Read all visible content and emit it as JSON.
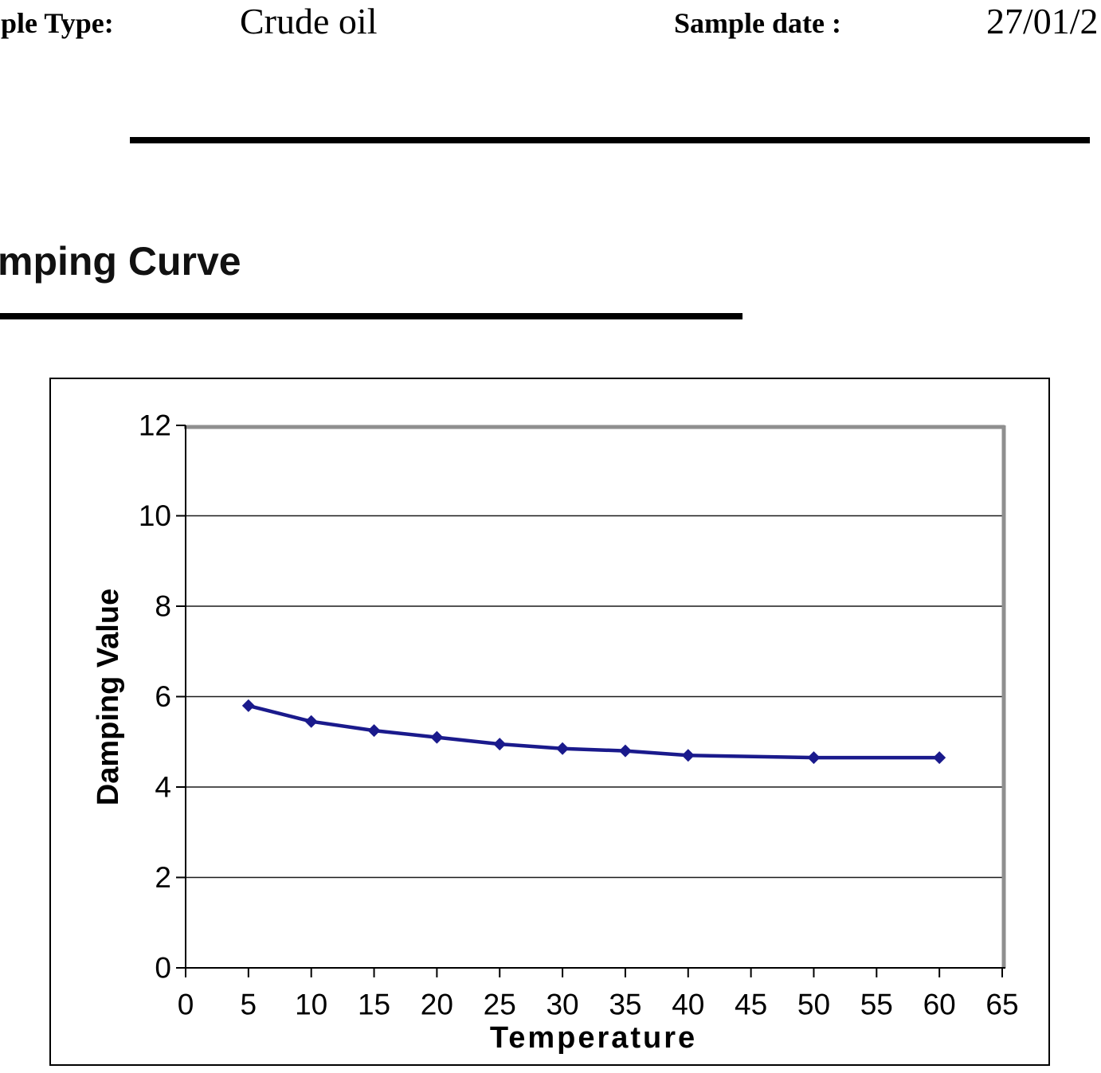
{
  "header": {
    "sample_type_label": "ple Type:",
    "sample_type_value": "Crude oil",
    "sample_date_label": "Sample date :",
    "sample_date_value": "27/01/2"
  },
  "section": {
    "title": "mping Curve"
  },
  "chart_data": {
    "type": "line",
    "title": "",
    "xlabel": "Temperature",
    "ylabel": "Damping Value",
    "x": [
      5,
      10,
      15,
      20,
      25,
      30,
      35,
      40,
      50,
      60
    ],
    "series": [
      {
        "name": "Damping Value",
        "values": [
          5.8,
          5.45,
          5.25,
          5.1,
          4.95,
          4.85,
          4.8,
          4.7,
          4.65,
          4.65
        ]
      }
    ],
    "xlim": [
      0,
      65
    ],
    "ylim": [
      0,
      12
    ],
    "x_ticks": [
      0,
      5,
      10,
      15,
      20,
      25,
      30,
      35,
      40,
      45,
      50,
      55,
      60,
      65
    ],
    "y_ticks": [
      0,
      2,
      4,
      6,
      8,
      10,
      12
    ],
    "grid": true,
    "legend_position": "none",
    "marker_shape": "diamond",
    "line_color": "#1a1a8c",
    "marker_color": "#1a1a8c",
    "gridline_color": "#1a1a1a",
    "plot_border_color": "#8f8f8f",
    "axis_color": "#000000"
  }
}
